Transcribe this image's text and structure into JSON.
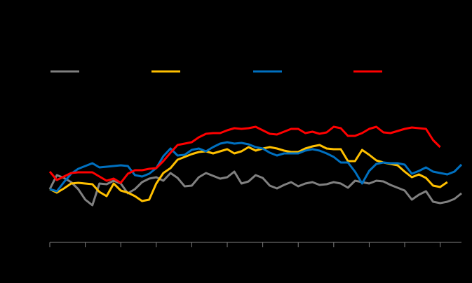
{
  "chart_data": {
    "type": "line",
    "x": [
      0,
      1,
      2,
      3,
      4,
      5,
      6,
      7,
      8,
      9,
      10,
      11,
      12,
      13,
      14,
      15,
      16,
      17,
      18,
      19,
      20,
      21,
      22,
      23,
      24,
      25,
      26,
      27,
      28,
      29,
      30,
      31,
      32,
      33,
      34,
      35,
      36,
      37,
      38,
      39,
      40,
      41,
      42,
      43,
      44,
      45,
      46,
      47,
      48,
      49,
      50,
      51,
      52,
      53,
      54,
      55,
      56,
      57,
      58
    ],
    "xlim": [
      0,
      58
    ],
    "xticks": [
      0,
      5,
      10,
      15,
      20,
      25,
      30,
      35,
      40,
      45,
      50,
      55
    ],
    "ylim": [
      0,
      300
    ],
    "series": [
      {
        "color": "#808080",
        "values": [
          76,
          96,
          92,
          86,
          76,
          61,
          53,
          84,
          83,
          88,
          84,
          70,
          76,
          86,
          91,
          93,
          88,
          99,
          92,
          80,
          81,
          93,
          99,
          95,
          91,
          93,
          101,
          84,
          87,
          96,
          92,
          81,
          77,
          82,
          86,
          80,
          84,
          86,
          82,
          83,
          86,
          84,
          78,
          88,
          86,
          84,
          88,
          87,
          82,
          78,
          74,
          61,
          68,
          73,
          58,
          56,
          58,
          62,
          70
        ]
      },
      {
        "color": "#ffc000",
        "values": [
          76,
          71,
          77,
          84,
          85,
          84,
          83,
          72,
          66,
          84,
          74,
          71,
          66,
          59,
          61,
          84,
          99,
          106,
          118,
          122,
          126,
          129,
          130,
          127,
          130,
          133,
          127,
          130,
          136,
          131,
          134,
          136,
          134,
          131,
          129,
          129,
          134,
          137,
          139,
          134,
          133,
          133,
          116,
          116,
          132,
          125,
          117,
          114,
          112,
          110,
          101,
          93,
          97,
          92,
          81,
          79,
          86,
          null,
          null
        ]
      },
      {
        "color": "#0070c0",
        "values": [
          76,
          73,
          86,
          98,
          105,
          109,
          113,
          107,
          108,
          109,
          110,
          109,
          96,
          94,
          98,
          106,
          123,
          134,
          124,
          125,
          132,
          134,
          130,
          136,
          141,
          143,
          141,
          142,
          140,
          136,
          134,
          128,
          124,
          127,
          127,
          127,
          131,
          133,
          131,
          127,
          122,
          114,
          114,
          101,
          84,
          102,
          112,
          114,
          113,
          113,
          111,
          98,
          102,
          107,
          101,
          99,
          97,
          101,
          111
        ]
      },
      {
        "color": "#ff0000",
        "values": [
          101,
          89,
          94,
          99,
          100,
          100,
          100,
          94,
          88,
          91,
          85,
          98,
          103,
          103,
          105,
          106,
          116,
          128,
          139,
          141,
          143,
          150,
          155,
          156,
          156,
          160,
          163,
          162,
          163,
          165,
          160,
          155,
          154,
          158,
          162,
          162,
          156,
          158,
          155,
          157,
          165,
          163,
          152,
          152,
          156,
          162,
          165,
          157,
          156,
          159,
          162,
          164,
          163,
          162,
          146,
          136,
          null,
          null,
          null
        ]
      }
    ]
  }
}
